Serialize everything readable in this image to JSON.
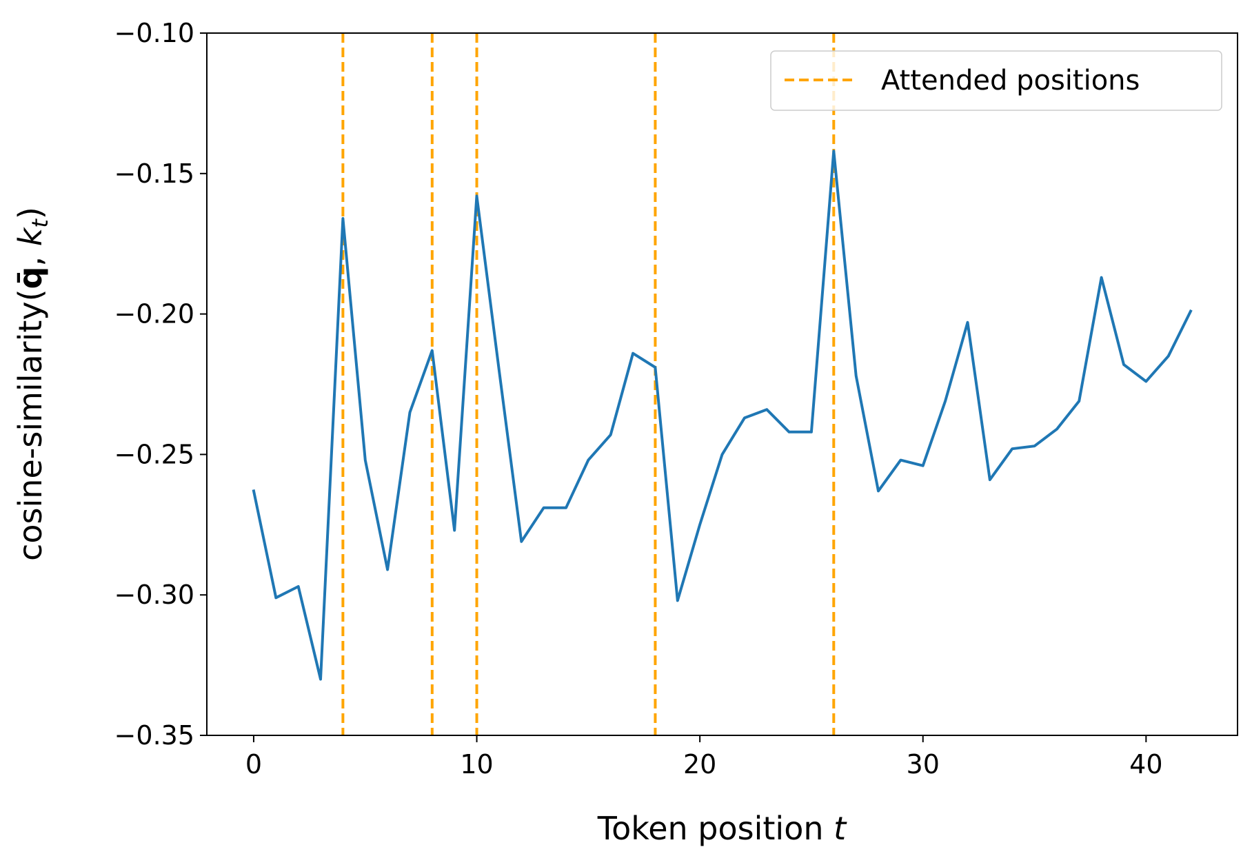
{
  "chart_data": {
    "type": "line",
    "xlabel": "Token position",
    "xlabel_var": "t",
    "ylabel_prefix": "cosine-similarity(",
    "ylabel_q": "q̄",
    "ylabel_sep": ", ",
    "ylabel_k": "k",
    "ylabel_sub": "t",
    "ylabel_suffix": ")",
    "xlim": [
      -2.1,
      44.1
    ],
    "ylim": [
      -0.35,
      -0.1
    ],
    "xticks": [
      0,
      10,
      20,
      30,
      40
    ],
    "yticks": [
      -0.35,
      -0.3,
      -0.25,
      -0.2,
      -0.15,
      -0.1
    ],
    "xtick_labels": [
      "0",
      "10",
      "20",
      "30",
      "40"
    ],
    "ytick_labels": [
      "−0.35",
      "−0.30",
      "−0.25",
      "−0.20",
      "−0.15",
      "−0.10"
    ],
    "grid": false,
    "legend_position": "top-right",
    "series": [
      {
        "color": "#1f77b4",
        "x": [
          0,
          1,
          2,
          3,
          4,
          5,
          6,
          7,
          8,
          9,
          10,
          11,
          12,
          13,
          14,
          15,
          16,
          17,
          18,
          19,
          20,
          21,
          22,
          23,
          24,
          25,
          26,
          27,
          28,
          29,
          30,
          31,
          32,
          33,
          34,
          35,
          36,
          37,
          38,
          39,
          40,
          41,
          42
        ],
        "values": [
          -0.263,
          -0.301,
          -0.297,
          -0.33,
          -0.166,
          -0.252,
          -0.291,
          -0.235,
          -0.213,
          -0.277,
          -0.158,
          -0.22,
          -0.281,
          -0.269,
          -0.269,
          -0.252,
          -0.243,
          -0.214,
          -0.219,
          -0.302,
          -0.275,
          -0.25,
          -0.237,
          -0.234,
          -0.242,
          -0.242,
          -0.142,
          -0.222,
          -0.263,
          -0.252,
          -0.254,
          -0.231,
          -0.203,
          -0.259,
          -0.248,
          -0.247,
          -0.241,
          -0.231,
          -0.187,
          -0.218,
          -0.224,
          -0.215,
          -0.199
        ]
      }
    ],
    "vlines": {
      "name": "Attended positions",
      "color": "#ffa500",
      "x": [
        4,
        8,
        10,
        18,
        26
      ]
    }
  }
}
